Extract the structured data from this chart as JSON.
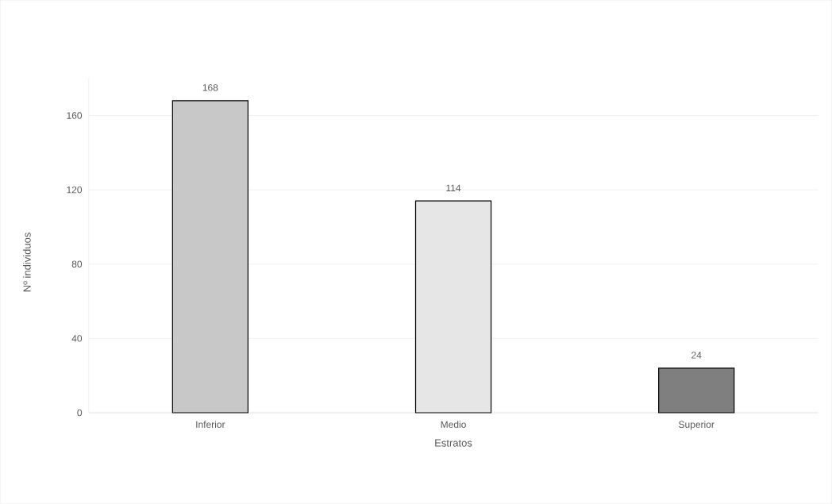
{
  "chart_data": {
    "type": "bar",
    "xlabel": "Estratos",
    "ylabel": "Nº individuos",
    "categories": [
      "Inferior",
      "Medio",
      "Superior"
    ],
    "values": [
      168,
      114,
      24
    ],
    "colors": [
      "#c8c8c8",
      "#e6e6e6",
      "#7f7f7f"
    ],
    "ylim": [
      0,
      180
    ],
    "yticks": [
      0,
      40,
      80,
      120,
      160
    ],
    "grid": "y",
    "data_labels": true
  }
}
